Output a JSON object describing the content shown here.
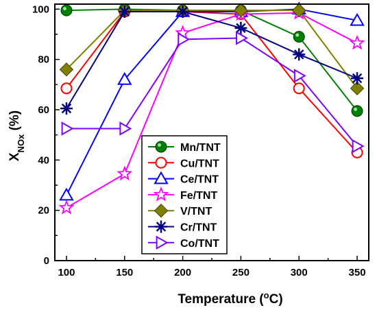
{
  "chart_data": {
    "type": "line",
    "title": "",
    "xlabel": {
      "main": "Temperature (",
      "sup": "o",
      "tail": "C)"
    },
    "ylabel": {
      "main": "X",
      "sub": "NOx",
      "tail": " (%)"
    },
    "x": [
      100,
      150,
      200,
      250,
      300,
      350
    ],
    "xlim": [
      90,
      360
    ],
    "ylim": [
      0,
      102
    ],
    "xticks": [
      100,
      150,
      200,
      250,
      300,
      350
    ],
    "yticks": [
      0,
      20,
      40,
      60,
      80,
      100
    ],
    "legend_position": "lower-center",
    "grid": false,
    "series": [
      {
        "name": "Mn/TNT",
        "color": "#008000",
        "marker": "filled-circle",
        "values": [
          99.5,
          100,
          99.5,
          99.5,
          89,
          59.5
        ]
      },
      {
        "name": "Cu/TNT",
        "color": "#ff0000",
        "marker": "open-circle",
        "values": [
          68.5,
          99,
          99,
          98,
          68.5,
          43
        ]
      },
      {
        "name": "Ce/TNT",
        "color": "#0000ff",
        "marker": "open-triangle",
        "values": [
          26,
          72,
          99,
          99,
          100,
          95.5
        ]
      },
      {
        "name": "Fe/TNT",
        "color": "#ff00ff",
        "marker": "open-star",
        "values": [
          21,
          34.5,
          90.5,
          98,
          98.5,
          86.5
        ]
      },
      {
        "name": "V/TNT",
        "color": "#808000",
        "marker": "filled-diamond",
        "values": [
          76,
          99.5,
          99.5,
          99.5,
          99.5,
          68.5
        ]
      },
      {
        "name": "Cr/TNT",
        "color": "#000080",
        "marker": "asterisk",
        "values": [
          60.5,
          99,
          99,
          92.5,
          82,
          72.5
        ]
      },
      {
        "name": "Co/TNT",
        "color": "#8000ff",
        "marker": "right-triangle",
        "values": [
          52.5,
          52.5,
          88,
          88.5,
          73.5,
          45.5
        ]
      }
    ]
  }
}
